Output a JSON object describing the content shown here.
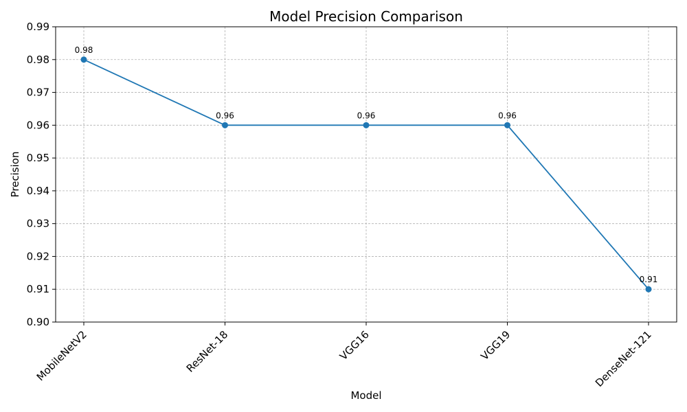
{
  "chart_data": {
    "type": "line",
    "title": "Model Precision Comparison",
    "xlabel": "Model",
    "ylabel": "Precision",
    "categories": [
      "MobileNetV2",
      "ResNet-18",
      "VGG16",
      "VGG19",
      "DenseNet-121"
    ],
    "series": [
      {
        "values": [
          0.98,
          0.96,
          0.96,
          0.96,
          0.91
        ]
      }
    ],
    "data_labels": [
      "0.98",
      "0.96",
      "0.96",
      "0.96",
      "0.91"
    ],
    "y_ticks": [
      "0.90",
      "0.91",
      "0.92",
      "0.93",
      "0.94",
      "0.95",
      "0.96",
      "0.97",
      "0.98",
      "0.99"
    ],
    "ylim": [
      0.9,
      0.99
    ],
    "grid": true,
    "line_color": "#1f77b4",
    "marker": "circle"
  }
}
